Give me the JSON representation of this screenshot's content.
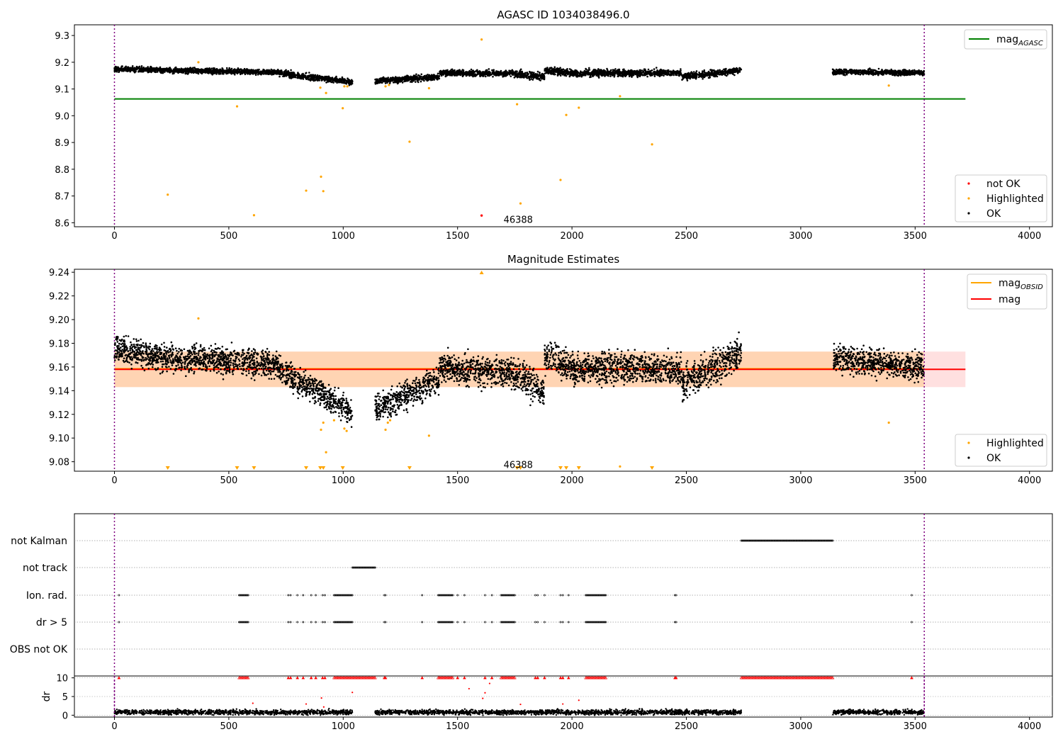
{
  "chart_data": [
    {
      "type": "scatter",
      "title": "AGASC ID 1034038496.0",
      "xlim": [
        -175,
        4100
      ],
      "ylim": [
        8.585,
        9.34
      ],
      "xticks": [
        0,
        500,
        1000,
        1500,
        2000,
        2500,
        3000,
        3500,
        4000
      ],
      "yticks": [
        8.6,
        8.7,
        8.8,
        8.9,
        9.0,
        9.1,
        9.2,
        9.3
      ],
      "ytick_decimals": 1,
      "obs_boundaries": [
        0,
        3540
      ],
      "annotation": {
        "text": "46388",
        "x": 1765,
        "y": 8.61
      },
      "legend_upper": {
        "position": "upper right",
        "entries": [
          {
            "label": "mag",
            "sub": "AGASC",
            "color": "#008000"
          }
        ]
      },
      "legend_lower": {
        "position": "lower right",
        "entries": [
          {
            "label": "not OK",
            "color": "#ff0000"
          },
          {
            "label": "Highlighted",
            "color": "#ffa500"
          },
          {
            "label": "OK",
            "color": "#000000"
          }
        ]
      },
      "hlines": [
        {
          "name": "mag_AGASC",
          "y": 9.063,
          "x0": 0,
          "x1": 3720,
          "color": "#008000"
        }
      ],
      "ok_segments": [
        {
          "x0": 0,
          "x1": 340,
          "y0": 9.175,
          "y1": 9.168,
          "noise": 0.007
        },
        {
          "x0": 340,
          "x1": 720,
          "y0": 9.168,
          "y1": 9.163,
          "noise": 0.007
        },
        {
          "x0": 720,
          "x1": 900,
          "y0": 9.16,
          "y1": 9.14,
          "noise": 0.008
        },
        {
          "x0": 900,
          "x1": 1040,
          "y0": 9.14,
          "y1": 9.125,
          "noise": 0.007
        },
        {
          "x0": 1140,
          "x1": 1420,
          "y0": 9.13,
          "y1": 9.145,
          "noise": 0.008
        },
        {
          "x0": 1420,
          "x1": 1720,
          "y0": 9.16,
          "y1": 9.158,
          "noise": 0.008
        },
        {
          "x0": 1720,
          "x1": 1880,
          "y0": 9.16,
          "y1": 9.145,
          "noise": 0.009
        },
        {
          "x0": 1880,
          "x1": 2050,
          "y0": 9.17,
          "y1": 9.155,
          "noise": 0.009
        },
        {
          "x0": 2050,
          "x1": 2480,
          "y0": 9.16,
          "y1": 9.16,
          "noise": 0.009
        },
        {
          "x0": 2480,
          "x1": 2740,
          "y0": 9.145,
          "y1": 9.17,
          "noise": 0.009
        },
        {
          "x0": 3140,
          "x1": 3540,
          "y0": 9.165,
          "y1": 9.16,
          "noise": 0.007
        }
      ],
      "highlighted": [
        {
          "x": 233,
          "y": 8.705
        },
        {
          "x": 367,
          "y": 9.2
        },
        {
          "x": 536,
          "y": 9.035
        },
        {
          "x": 610,
          "y": 8.628
        },
        {
          "x": 838,
          "y": 8.72
        },
        {
          "x": 900,
          "y": 9.105
        },
        {
          "x": 903,
          "y": 8.772
        },
        {
          "x": 913,
          "y": 8.718
        },
        {
          "x": 925,
          "y": 9.085
        },
        {
          "x": 998,
          "y": 9.028
        },
        {
          "x": 1005,
          "y": 9.11
        },
        {
          "x": 1018,
          "y": 9.11
        },
        {
          "x": 1185,
          "y": 9.11
        },
        {
          "x": 1200,
          "y": 9.115
        },
        {
          "x": 1290,
          "y": 8.903
        },
        {
          "x": 1375,
          "y": 9.103
        },
        {
          "x": 1605,
          "y": 9.285
        },
        {
          "x": 1760,
          "y": 9.043
        },
        {
          "x": 1775,
          "y": 8.672
        },
        {
          "x": 1950,
          "y": 8.76
        },
        {
          "x": 1975,
          "y": 9.003
        },
        {
          "x": 2030,
          "y": 9.03
        },
        {
          "x": 2210,
          "y": 9.073
        },
        {
          "x": 2350,
          "y": 8.893
        },
        {
          "x": 3385,
          "y": 9.113
        }
      ],
      "not_ok": [
        {
          "x": 1605,
          "y": 8.627
        }
      ]
    },
    {
      "type": "scatter",
      "title": "Magnitude Estimates",
      "xlim": [
        -175,
        4100
      ],
      "ylim": [
        9.072,
        9.2425
      ],
      "xticks": [
        0,
        500,
        1000,
        1500,
        2000,
        2500,
        3000,
        3500,
        4000
      ],
      "yticks": [
        9.08,
        9.1,
        9.12,
        9.14,
        9.16,
        9.18,
        9.2,
        9.22,
        9.24
      ],
      "ytick_decimals": 2,
      "obs_boundaries": [
        0,
        3540
      ],
      "annotation": {
        "text": "46388",
        "x": 1765,
        "y": 9.077
      },
      "legend_upper": {
        "position": "upper right",
        "entries": [
          {
            "label": "mag",
            "sub": "OBSID",
            "color": "#ffa500"
          },
          {
            "label": "mag",
            "color": "#ff0000"
          }
        ]
      },
      "legend_lower": {
        "position": "lower right",
        "entries": [
          {
            "label": "Highlighted",
            "color": "#ffa500"
          },
          {
            "label": "OK",
            "color": "#000000"
          }
        ]
      },
      "hlines": [
        {
          "name": "mag_OBSID",
          "y": 9.1585,
          "x0": 0,
          "x1": 3540,
          "color": "#ffa500"
        },
        {
          "name": "mag",
          "y": 9.158,
          "x0": 0,
          "x1": 3720,
          "color": "#ff0000"
        }
      ],
      "bands": [
        {
          "name": "mag_band",
          "y0": 9.143,
          "y1": 9.173,
          "x0": 0,
          "x1": 3720,
          "color": "#ff0000",
          "opacity": 0.12
        },
        {
          "name": "mag_OBSID_band",
          "y0": 9.143,
          "y1": 9.173,
          "x0": 0,
          "x1": 3540,
          "color": "#ffa500",
          "opacity": 0.2
        }
      ],
      "ok_segments": [
        {
          "x0": 0,
          "x1": 340,
          "y0": 9.175,
          "y1": 9.165,
          "noise": 0.008
        },
        {
          "x0": 340,
          "x1": 720,
          "y0": 9.168,
          "y1": 9.162,
          "noise": 0.008
        },
        {
          "x0": 720,
          "x1": 900,
          "y0": 9.158,
          "y1": 9.138,
          "noise": 0.008
        },
        {
          "x0": 900,
          "x1": 1040,
          "y0": 9.138,
          "y1": 9.122,
          "noise": 0.008
        },
        {
          "x0": 1140,
          "x1": 1420,
          "y0": 9.125,
          "y1": 9.148,
          "noise": 0.008
        },
        {
          "x0": 1420,
          "x1": 1720,
          "y0": 9.16,
          "y1": 9.155,
          "noise": 0.009
        },
        {
          "x0": 1720,
          "x1": 1880,
          "y0": 9.158,
          "y1": 9.14,
          "noise": 0.009
        },
        {
          "x0": 1880,
          "x1": 2050,
          "y0": 9.17,
          "y1": 9.155,
          "noise": 0.009
        },
        {
          "x0": 2050,
          "x1": 2480,
          "y0": 9.16,
          "y1": 9.158,
          "noise": 0.009
        },
        {
          "x0": 2480,
          "x1": 2740,
          "y0": 9.145,
          "y1": 9.172,
          "noise": 0.009
        },
        {
          "x0": 3140,
          "x1": 3540,
          "y0": 9.168,
          "y1": 9.16,
          "noise": 0.008
        }
      ],
      "highlighted": [
        {
          "x": 367,
          "y": 9.201
        },
        {
          "x": 903,
          "y": 9.107
        },
        {
          "x": 913,
          "y": 9.113
        },
        {
          "x": 925,
          "y": 9.088
        },
        {
          "x": 960,
          "y": 9.115
        },
        {
          "x": 1005,
          "y": 9.108
        },
        {
          "x": 1015,
          "y": 9.106
        },
        {
          "x": 1185,
          "y": 9.107
        },
        {
          "x": 1195,
          "y": 9.113
        },
        {
          "x": 1205,
          "y": 9.115
        },
        {
          "x": 1375,
          "y": 9.102
        },
        {
          "x": 2210,
          "y": 9.076
        },
        {
          "x": 3385,
          "y": 9.113
        }
      ],
      "below_range_markers": [
        233,
        536,
        610,
        838,
        900,
        913,
        998,
        1290,
        1760,
        1775,
        1950,
        1975,
        2030,
        2350
      ],
      "above_range_markers": [
        1605
      ]
    },
    {
      "type": "scatter",
      "title": "",
      "xlim": [
        -175,
        4100
      ],
      "xticks": [
        0,
        500,
        1000,
        1500,
        2000,
        2500,
        3000,
        3500,
        4000
      ],
      "obs_boundaries": [
        0,
        3540
      ],
      "flag_rows": [
        {
          "label": "not Kalman",
          "ranges": [
            [
              2740,
              3140
            ]
          ],
          "singles": []
        },
        {
          "label": "not track",
          "ranges": [
            [
              1040,
              1140
            ]
          ],
          "singles": []
        },
        {
          "label": "Ion. rad.",
          "ranges": [
            [
              545,
              585
            ],
            [
              960,
              1040
            ],
            [
              1415,
              1480
            ],
            [
              1690,
              1750
            ],
            [
              2060,
              2150
            ]
          ],
          "singles": [
            20,
            760,
            770,
            800,
            825,
            860,
            880,
            910,
            920,
            1180,
            1185,
            1345,
            1500,
            1530,
            1620,
            1650,
            1840,
            1850,
            1880,
            1950,
            1960,
            1985,
            2450,
            2455,
            3485
          ]
        },
        {
          "label": "dr > 5",
          "ranges": [
            [
              545,
              585
            ],
            [
              960,
              1040
            ],
            [
              1415,
              1480
            ],
            [
              1690,
              1750
            ],
            [
              2060,
              2150
            ]
          ],
          "singles": [
            20,
            760,
            770,
            800,
            825,
            860,
            880,
            910,
            920,
            1180,
            1185,
            1345,
            1500,
            1530,
            1620,
            1650,
            1840,
            1850,
            1880,
            1950,
            1960,
            1985,
            2450,
            2455,
            3485
          ]
        },
        {
          "label": "OBS not OK",
          "ranges": [],
          "singles": []
        }
      ],
      "dr": {
        "ylabel": "dr",
        "ylim": [
          -0.5,
          10.5
        ],
        "yticks": [
          0,
          5,
          10
        ],
        "ok_segments": [
          [
            0,
            1040
          ],
          [
            1140,
            2740
          ],
          [
            3140,
            3540
          ]
        ],
        "ok_level": 0.8,
        "high_ranges": [
          [
            545,
            585
          ],
          [
            960,
            1140
          ],
          [
            1415,
            1480
          ],
          [
            1690,
            1750
          ],
          [
            2060,
            2150
          ],
          [
            2740,
            3140
          ]
        ],
        "high_singles": [
          20,
          760,
          770,
          800,
          825,
          860,
          880,
          910,
          920,
          1180,
          1185,
          1345,
          1500,
          1530,
          1620,
          1650,
          1840,
          1850,
          1880,
          1950,
          1960,
          1985,
          2450,
          2455,
          3485
        ],
        "scatter_points": [
          {
            "x": 605,
            "y": 3.2
          },
          {
            "x": 838,
            "y": 3.0
          },
          {
            "x": 905,
            "y": 4.6
          },
          {
            "x": 915,
            "y": 2.2
          },
          {
            "x": 1040,
            "y": 6.1
          },
          {
            "x": 1550,
            "y": 7.1
          },
          {
            "x": 1610,
            "y": 4.5
          },
          {
            "x": 1620,
            "y": 6.0
          },
          {
            "x": 1640,
            "y": 8.5
          },
          {
            "x": 1775,
            "y": 2.9
          },
          {
            "x": 1960,
            "y": 3.0
          },
          {
            "x": 2030,
            "y": 4.0
          }
        ]
      }
    }
  ]
}
